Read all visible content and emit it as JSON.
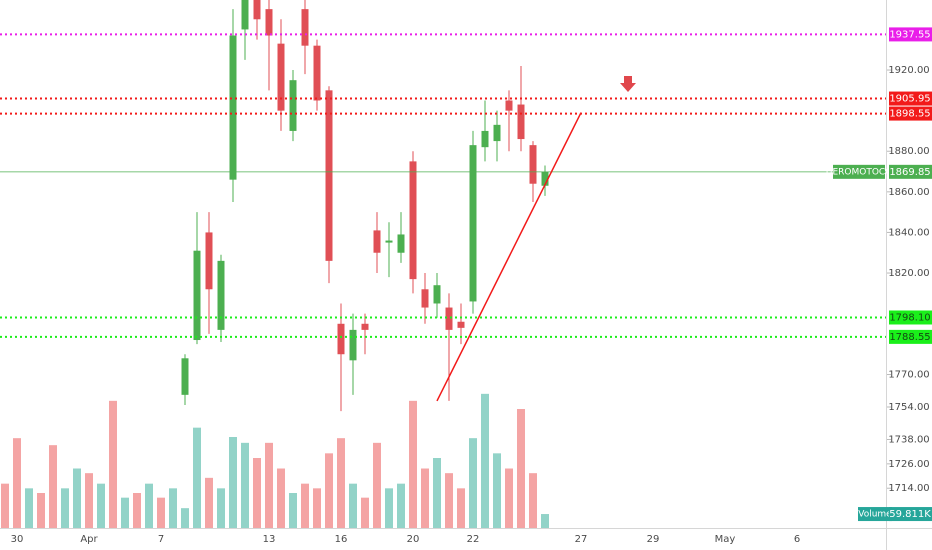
{
  "chart_data": {
    "type": "candlestick",
    "categories": [
      null,
      "30",
      null,
      null,
      null,
      null,
      null,
      "Apr",
      null,
      null,
      null,
      null,
      null,
      "7",
      null,
      null,
      null,
      null,
      null,
      null,
      null,
      null,
      "13",
      null,
      null,
      null,
      null,
      null,
      "16",
      null,
      null,
      null,
      null,
      null,
      "20",
      null,
      null,
      null,
      null,
      "22",
      null,
      null,
      null,
      null,
      null,
      null,
      null,
      null,
      "27",
      null,
      null,
      null,
      null,
      null,
      "29",
      null,
      null,
      null,
      null,
      null,
      "May",
      null,
      null,
      null,
      null,
      null,
      "6"
    ],
    "open": [
      null,
      null,
      null,
      null,
      null,
      null,
      null,
      null,
      null,
      null,
      null,
      null,
      null,
      null,
      null,
      1760,
      1787,
      1840,
      1792,
      1866,
      1940,
      1955,
      1950,
      1933,
      1890,
      1950,
      1932,
      1910,
      1795,
      1777,
      1795,
      1841,
      1835,
      1830,
      1875,
      1812,
      1805,
      1803,
      1796,
      1806,
      1882,
      1885,
      1905,
      1903,
      1883,
      1863,
      null,
      null,
      null,
      null,
      null,
      null,
      null,
      null,
      null,
      null,
      null,
      null,
      null,
      null,
      null,
      null,
      null,
      null,
      null,
      null,
      null
    ],
    "high": [
      null,
      null,
      null,
      null,
      null,
      null,
      null,
      null,
      null,
      null,
      null,
      null,
      null,
      null,
      null,
      1780,
      1850,
      1850,
      1829,
      1950,
      1958,
      1960,
      1958,
      1945,
      1920,
      1958,
      1935,
      1912,
      1805,
      1800,
      1800,
      1850,
      1845,
      1850,
      1880,
      1820,
      1820,
      1810,
      1805,
      1890,
      1905,
      1900,
      1910,
      1922,
      1885,
      1873,
      null,
      null,
      null,
      null,
      null,
      null,
      null,
      null,
      null,
      null,
      null,
      null,
      null,
      null,
      null,
      null,
      null,
      null,
      null,
      null,
      null
    ],
    "low": [
      null,
      null,
      null,
      null,
      null,
      null,
      null,
      null,
      null,
      null,
      null,
      null,
      null,
      null,
      null,
      1755,
      1785,
      1790,
      1786,
      1855,
      1925,
      1935,
      1910,
      1890,
      1885,
      1918,
      1900,
      1815,
      1752,
      1760,
      1780,
      1820,
      1818,
      1825,
      1810,
      1795,
      1798,
      1757,
      1785,
      1800,
      1875,
      1875,
      1880,
      1880,
      1855,
      1858,
      null,
      null,
      null,
      null,
      null,
      null,
      null,
      null,
      null,
      null,
      null,
      null,
      null,
      null,
      null,
      null,
      null,
      null,
      null,
      null,
      null
    ],
    "close": [
      null,
      null,
      null,
      null,
      null,
      null,
      null,
      null,
      null,
      null,
      null,
      null,
      null,
      null,
      null,
      1778,
      1831,
      1812,
      1826,
      1937,
      1955,
      1945,
      1937,
      1900,
      1915,
      1932,
      1905,
      1826,
      1780,
      1792,
      1792,
      1830,
      1836,
      1839,
      1817,
      1803,
      1814,
      1792,
      1793,
      1883,
      1890,
      1893,
      1900,
      1886,
      1864,
      1869.85,
      null,
      null,
      null,
      null,
      null,
      null,
      null,
      null,
      null,
      null,
      null,
      null,
      null,
      null,
      null,
      null,
      null,
      null,
      null,
      null,
      null
    ],
    "volume": [
      190000,
      385000,
      170000,
      150000,
      355000,
      170000,
      255000,
      235000,
      190000,
      545000,
      130000,
      150000,
      190000,
      130000,
      170000,
      85000,
      430000,
      215000,
      170000,
      390000,
      365000,
      300000,
      365000,
      255000,
      150000,
      190000,
      170000,
      320000,
      385000,
      190000,
      130000,
      365000,
      170000,
      190000,
      545000,
      255000,
      300000,
      235000,
      170000,
      385000,
      575000,
      320000,
      255000,
      510000,
      235000,
      59811,
      null,
      null,
      null,
      null,
      null,
      null,
      null,
      null,
      null,
      null,
      null,
      null,
      null,
      null,
      null,
      null,
      null,
      null,
      null,
      null,
      null
    ],
    "volume_colors": [
      "#f4a4a4",
      "#f4a4a4",
      "#92d3c8",
      "#f4a4a4",
      "#f4a4a4",
      "#92d3c8",
      "#92d3c8",
      "#f4a4a4",
      "#92d3c8",
      "#f4a4a4",
      "#92d3c8",
      "#f4a4a4",
      "#92d3c8",
      "#f4a4a4",
      "#92d3c8",
      "#92d3c8",
      "#92d3c8",
      "#f4a4a4",
      "#92d3c8",
      "#92d3c8",
      "#92d3c8",
      "#f4a4a4",
      "#f4a4a4",
      "#f4a4a4",
      "#92d3c8",
      "#f4a4a4",
      "#f4a4a4",
      "#f4a4a4",
      "#f4a4a4",
      "#92d3c8",
      "#f4a4a4",
      "#f4a4a4",
      "#92d3c8",
      "#92d3c8",
      "#f4a4a4",
      "#f4a4a4",
      "#92d3c8",
      "#f4a4a4",
      "#f4a4a4",
      "#92d3c8",
      "#92d3c8",
      "#92d3c8",
      "#f4a4a4",
      "#f4a4a4",
      "#f4a4a4",
      "#92d3c8",
      null,
      null,
      null,
      null,
      null,
      null,
      null,
      null,
      null,
      null,
      null,
      null,
      null,
      null,
      null,
      null,
      null,
      null,
      null,
      null,
      null
    ],
    "up_color": "#4caf50",
    "down_color": "#e04f55",
    "ylim": [
      1694.4,
      1954.5
    ],
    "yticks": [
      {
        "value": 1920,
        "label": "1920.00"
      },
      {
        "value": 1880,
        "label": "1880.00"
      },
      {
        "value": 1860,
        "label": "1860.00"
      },
      {
        "value": 1840,
        "label": "1840.00"
      },
      {
        "value": 1820,
        "label": "1820.00"
      },
      {
        "value": 1770,
        "label": "1770.00"
      },
      {
        "value": 1754,
        "label": "1754.00"
      },
      {
        "value": 1738,
        "label": "1738.00"
      },
      {
        "value": 1726,
        "label": "1726.00"
      },
      {
        "value": 1714,
        "label": "1714.00"
      }
    ],
    "volume_ylim": [
      0,
      600000
    ],
    "levels": [
      {
        "value": 1937.55,
        "label": "1937.55",
        "color": "#e91ee9"
      },
      {
        "value": 1905.95,
        "label": "1905.95",
        "color": "#f21a1a"
      },
      {
        "value": 1898.55,
        "label": "1898.55",
        "color": "#f21a1a"
      },
      {
        "value": 1798.1,
        "label": "1798.10",
        "color": "#1aef1a"
      },
      {
        "value": 1788.55,
        "label": "1788.55",
        "color": "#1aef1a"
      }
    ],
    "last": {
      "symbol": "HEROMOTOCO",
      "value": 1869.85,
      "label": "1869.85",
      "color": "#4caf50"
    },
    "volume_label": {
      "name": "Volume",
      "value": 59811,
      "label": "59.811K",
      "color": "#26a69a"
    },
    "trend_line": {
      "start": {
        "index": 36,
        "price": 1757
      },
      "end": {
        "index": 48,
        "price": 1899
      },
      "color": "#f21a1a"
    }
  }
}
